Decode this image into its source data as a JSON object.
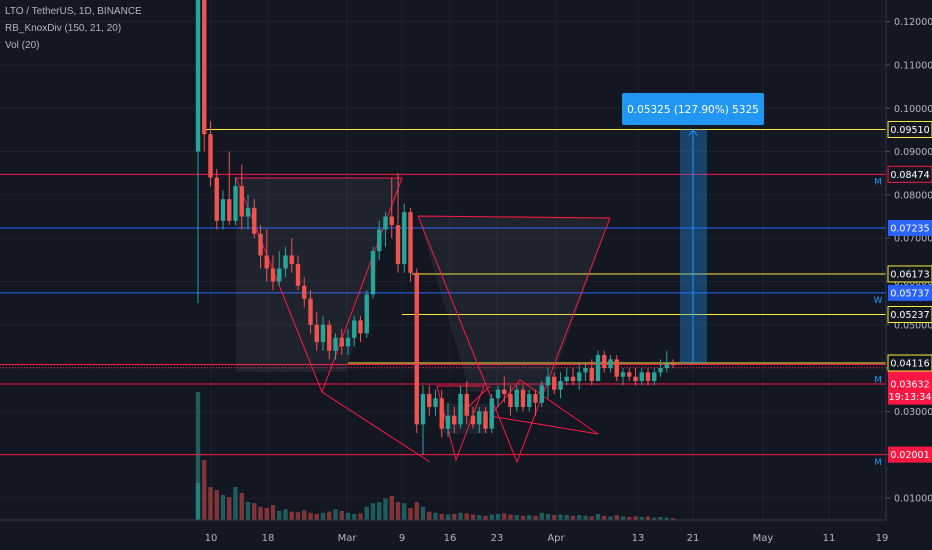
{
  "legend": {
    "symbol_line": "LTO / TetherUS, 1D, BINANCE",
    "indicator": "RB_KnoxDiv (150, 21, 20)",
    "volume": "Vol (20)"
  },
  "measure_box": {
    "label": "0.05325 (127.90%) 5325"
  },
  "colors": {
    "background": "#131722",
    "up": "#26a69a",
    "down": "#ef5350",
    "yellow_line": "#ffeb3b",
    "red_line": "#ff1744",
    "blue_line": "#2962ff",
    "measure": "#2196f3",
    "axis_text": "#b2b5be"
  },
  "chart_data": {
    "type": "candlestick",
    "y_axis_ticks": [
      "0.12000",
      "0.11000",
      "0.10000",
      "0.09000",
      "0.08000",
      "0.07000",
      "0.06000",
      "0.05000",
      "0.04000",
      "0.03000",
      "0.02000",
      "0.01000"
    ],
    "x_axis_ticks": [
      "10",
      "18",
      "Mar",
      "9",
      "16",
      "23",
      "Apr",
      "13",
      "21",
      "May",
      "11",
      "19"
    ],
    "horizontal_lines": [
      {
        "value": 0.0951,
        "label": "0.09510",
        "color": "yellow"
      },
      {
        "value": 0.08474,
        "label": "0.08474",
        "color": "red"
      },
      {
        "value": 0.07235,
        "label": "0.07235",
        "color": "blue"
      },
      {
        "value": 0.06173,
        "label": "0.06173",
        "color": "yellow"
      },
      {
        "value": 0.05737,
        "label": "0.05737",
        "color": "blue"
      },
      {
        "value": 0.05237,
        "label": "0.05237",
        "color": "yellow"
      },
      {
        "value": 0.04116,
        "label": "0.04116",
        "color": "yellow"
      },
      {
        "value": 0.04082,
        "label": "0.04082",
        "color": "red"
      },
      {
        "value": 0.03632,
        "label": "0.03632",
        "color": "red"
      },
      {
        "value": 0.02001,
        "label": "0.02001",
        "color": "red"
      }
    ],
    "price_scale_tags": [
      {
        "value": 0.0951,
        "label": "0.09510",
        "style": "yellow-outline"
      },
      {
        "value": 0.08474,
        "label": "0.08474",
        "style": "red-outline"
      },
      {
        "value": 0.07235,
        "label": "0.07235",
        "style": "blue-fill"
      },
      {
        "value": 0.06173,
        "label": "0.06173",
        "style": "yellow-outline"
      },
      {
        "value": 0.05737,
        "label": "0.05737",
        "style": "blue-fill"
      },
      {
        "value": 0.05237,
        "label": "0.05237",
        "style": "yellow-outline"
      },
      {
        "value": 0.04116,
        "label": "0.04116",
        "style": "yellow-outline"
      },
      {
        "value": 0.04082,
        "label": "0.04082",
        "style": "red-fill"
      },
      {
        "value": 0.0384,
        "label": "19:13:34",
        "style": "red-fill"
      },
      {
        "value": 0.03632,
        "label": "0.03632",
        "style": "red-fill"
      },
      {
        "value": 0.02001,
        "label": "0.02001",
        "style": "red-fill"
      }
    ],
    "side_markers": [
      {
        "value": 0.08474,
        "label": "M"
      },
      {
        "value": 0.05737,
        "label": "W"
      },
      {
        "value": 0.039,
        "label": "M"
      },
      {
        "value": 0.0199,
        "label": "M"
      }
    ],
    "candles": [
      {
        "o": 0.09,
        "h": 0.14,
        "l": 0.055,
        "c": 0.14
      },
      {
        "o": 0.14,
        "h": 0.14,
        "l": 0.09,
        "c": 0.094
      },
      {
        "o": 0.094,
        "h": 0.097,
        "l": 0.082,
        "c": 0.084
      },
      {
        "o": 0.084,
        "h": 0.086,
        "l": 0.072,
        "c": 0.074
      },
      {
        "o": 0.074,
        "h": 0.081,
        "l": 0.072,
        "c": 0.079
      },
      {
        "o": 0.079,
        "h": 0.09,
        "l": 0.073,
        "c": 0.074
      },
      {
        "o": 0.074,
        "h": 0.084,
        "l": 0.073,
        "c": 0.082
      },
      {
        "o": 0.082,
        "h": 0.087,
        "l": 0.072,
        "c": 0.075
      },
      {
        "o": 0.075,
        "h": 0.08,
        "l": 0.072,
        "c": 0.077
      },
      {
        "o": 0.077,
        "h": 0.079,
        "l": 0.07,
        "c": 0.071
      },
      {
        "o": 0.071,
        "h": 0.073,
        "l": 0.063,
        "c": 0.066
      },
      {
        "o": 0.066,
        "h": 0.072,
        "l": 0.06,
        "c": 0.063
      },
      {
        "o": 0.063,
        "h": 0.066,
        "l": 0.058,
        "c": 0.06
      },
      {
        "o": 0.06,
        "h": 0.067,
        "l": 0.059,
        "c": 0.063
      },
      {
        "o": 0.063,
        "h": 0.068,
        "l": 0.061,
        "c": 0.066
      },
      {
        "o": 0.066,
        "h": 0.07,
        "l": 0.062,
        "c": 0.064
      },
      {
        "o": 0.064,
        "h": 0.066,
        "l": 0.058,
        "c": 0.059
      },
      {
        "o": 0.059,
        "h": 0.061,
        "l": 0.054,
        "c": 0.056
      },
      {
        "o": 0.056,
        "h": 0.058,
        "l": 0.048,
        "c": 0.05
      },
      {
        "o": 0.05,
        "h": 0.053,
        "l": 0.044,
        "c": 0.046
      },
      {
        "o": 0.046,
        "h": 0.052,
        "l": 0.044,
        "c": 0.05
      },
      {
        "o": 0.05,
        "h": 0.051,
        "l": 0.042,
        "c": 0.044
      },
      {
        "o": 0.044,
        "h": 0.048,
        "l": 0.042,
        "c": 0.047
      },
      {
        "o": 0.047,
        "h": 0.049,
        "l": 0.043,
        "c": 0.045
      },
      {
        "o": 0.045,
        "h": 0.049,
        "l": 0.043,
        "c": 0.047
      },
      {
        "o": 0.047,
        "h": 0.052,
        "l": 0.045,
        "c": 0.051
      },
      {
        "o": 0.051,
        "h": 0.052,
        "l": 0.046,
        "c": 0.048
      },
      {
        "o": 0.048,
        "h": 0.058,
        "l": 0.047,
        "c": 0.057
      },
      {
        "o": 0.057,
        "h": 0.068,
        "l": 0.056,
        "c": 0.067
      },
      {
        "o": 0.067,
        "h": 0.074,
        "l": 0.065,
        "c": 0.072
      },
      {
        "o": 0.072,
        "h": 0.076,
        "l": 0.068,
        "c": 0.075
      },
      {
        "o": 0.075,
        "h": 0.084,
        "l": 0.07,
        "c": 0.073
      },
      {
        "o": 0.073,
        "h": 0.085,
        "l": 0.062,
        "c": 0.064
      },
      {
        "o": 0.064,
        "h": 0.078,
        "l": 0.062,
        "c": 0.076
      },
      {
        "o": 0.076,
        "h": 0.077,
        "l": 0.06,
        "c": 0.062
      },
      {
        "o": 0.062,
        "h": 0.063,
        "l": 0.025,
        "c": 0.027
      },
      {
        "o": 0.027,
        "h": 0.036,
        "l": 0.02,
        "c": 0.034
      },
      {
        "o": 0.034,
        "h": 0.036,
        "l": 0.029,
        "c": 0.031
      },
      {
        "o": 0.031,
        "h": 0.035,
        "l": 0.029,
        "c": 0.033
      },
      {
        "o": 0.033,
        "h": 0.035,
        "l": 0.024,
        "c": 0.026
      },
      {
        "o": 0.026,
        "h": 0.032,
        "l": 0.024,
        "c": 0.029
      },
      {
        "o": 0.029,
        "h": 0.031,
        "l": 0.025,
        "c": 0.027
      },
      {
        "o": 0.027,
        "h": 0.036,
        "l": 0.026,
        "c": 0.034
      },
      {
        "o": 0.034,
        "h": 0.037,
        "l": 0.027,
        "c": 0.029
      },
      {
        "o": 0.029,
        "h": 0.031,
        "l": 0.026,
        "c": 0.027
      },
      {
        "o": 0.027,
        "h": 0.031,
        "l": 0.025,
        "c": 0.03
      },
      {
        "o": 0.03,
        "h": 0.031,
        "l": 0.025,
        "c": 0.026
      },
      {
        "o": 0.026,
        "h": 0.034,
        "l": 0.025,
        "c": 0.033
      },
      {
        "o": 0.033,
        "h": 0.036,
        "l": 0.031,
        "c": 0.035
      },
      {
        "o": 0.035,
        "h": 0.038,
        "l": 0.032,
        "c": 0.034
      },
      {
        "o": 0.034,
        "h": 0.036,
        "l": 0.029,
        "c": 0.031
      },
      {
        "o": 0.031,
        "h": 0.036,
        "l": 0.03,
        "c": 0.035
      },
      {
        "o": 0.035,
        "h": 0.036,
        "l": 0.03,
        "c": 0.031
      },
      {
        "o": 0.031,
        "h": 0.035,
        "l": 0.03,
        "c": 0.034
      },
      {
        "o": 0.034,
        "h": 0.035,
        "l": 0.029,
        "c": 0.032
      },
      {
        "o": 0.032,
        "h": 0.037,
        "l": 0.031,
        "c": 0.036
      },
      {
        "o": 0.036,
        "h": 0.04,
        "l": 0.033,
        "c": 0.038
      },
      {
        "o": 0.038,
        "h": 0.039,
        "l": 0.034,
        "c": 0.035
      },
      {
        "o": 0.035,
        "h": 0.039,
        "l": 0.033,
        "c": 0.037
      },
      {
        "o": 0.037,
        "h": 0.04,
        "l": 0.036,
        "c": 0.038
      },
      {
        "o": 0.038,
        "h": 0.04,
        "l": 0.036,
        "c": 0.037
      },
      {
        "o": 0.037,
        "h": 0.041,
        "l": 0.035,
        "c": 0.039
      },
      {
        "o": 0.039,
        "h": 0.041,
        "l": 0.037,
        "c": 0.04
      },
      {
        "o": 0.04,
        "h": 0.042,
        "l": 0.036,
        "c": 0.037
      },
      {
        "o": 0.037,
        "h": 0.044,
        "l": 0.037,
        "c": 0.043
      },
      {
        "o": 0.043,
        "h": 0.044,
        "l": 0.039,
        "c": 0.04
      },
      {
        "o": 0.04,
        "h": 0.043,
        "l": 0.039,
        "c": 0.042
      },
      {
        "o": 0.042,
        "h": 0.043,
        "l": 0.037,
        "c": 0.038
      },
      {
        "o": 0.038,
        "h": 0.04,
        "l": 0.036,
        "c": 0.039
      },
      {
        "o": 0.039,
        "h": 0.04,
        "l": 0.037,
        "c": 0.038
      },
      {
        "o": 0.038,
        "h": 0.04,
        "l": 0.036,
        "c": 0.037
      },
      {
        "o": 0.037,
        "h": 0.04,
        "l": 0.036,
        "c": 0.039
      },
      {
        "o": 0.039,
        "h": 0.04,
        "l": 0.036,
        "c": 0.037
      },
      {
        "o": 0.037,
        "h": 0.04,
        "l": 0.036,
        "c": 0.039
      },
      {
        "o": 0.039,
        "h": 0.042,
        "l": 0.038,
        "c": 0.04
      },
      {
        "o": 0.04,
        "h": 0.044,
        "l": 0.039,
        "c": 0.041
      },
      {
        "o": 0.041,
        "h": 0.042,
        "l": 0.04,
        "c": 0.0408
      }
    ],
    "volume": [
      0.62,
      1.0,
      0.55,
      0.5,
      0.42,
      0.38,
      0.55,
      0.45,
      0.3,
      0.28,
      0.22,
      0.2,
      0.25,
      0.15,
      0.18,
      0.14,
      0.13,
      0.16,
      0.12,
      0.1,
      0.12,
      0.14,
      0.18,
      0.15,
      0.12,
      0.1,
      0.11,
      0.22,
      0.28,
      0.3,
      0.36,
      0.4,
      0.3,
      0.28,
      0.2,
      0.3,
      0.22,
      0.14,
      0.12,
      0.1,
      0.09,
      0.1,
      0.12,
      0.11,
      0.09,
      0.08,
      0.07,
      0.09,
      0.1,
      0.11,
      0.09,
      0.08,
      0.07,
      0.08,
      0.07,
      0.12,
      0.1,
      0.08,
      0.09,
      0.08,
      0.07,
      0.08,
      0.07,
      0.06,
      0.1,
      0.07,
      0.06,
      0.08,
      0.06,
      0.05,
      0.06,
      0.05,
      0.06,
      0.04,
      0.05,
      0.04,
      0.03
    ]
  }
}
